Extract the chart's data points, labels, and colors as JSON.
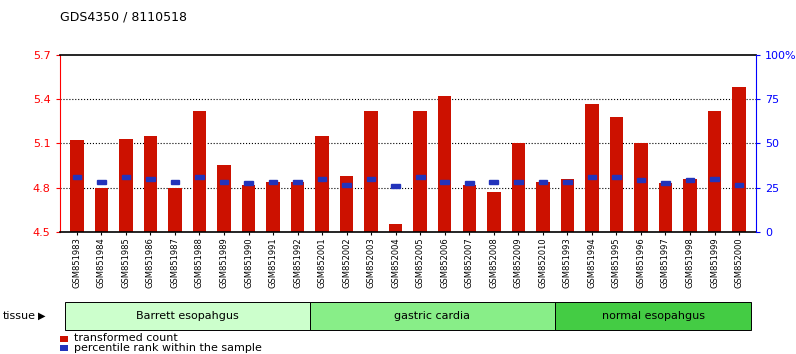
{
  "title": "GDS4350 / 8110518",
  "samples": [
    "GSM851983",
    "GSM851984",
    "GSM851985",
    "GSM851986",
    "GSM851987",
    "GSM851988",
    "GSM851989",
    "GSM851990",
    "GSM851991",
    "GSM851992",
    "GSM852001",
    "GSM852002",
    "GSM852003",
    "GSM852004",
    "GSM852005",
    "GSM852006",
    "GSM852007",
    "GSM852008",
    "GSM852009",
    "GSM852010",
    "GSM851993",
    "GSM851994",
    "GSM851995",
    "GSM851996",
    "GSM851997",
    "GSM851998",
    "GSM851999",
    "GSM852000"
  ],
  "bar_values": [
    5.12,
    4.8,
    5.13,
    5.15,
    4.8,
    5.32,
    4.95,
    4.82,
    4.84,
    4.84,
    5.15,
    4.88,
    5.32,
    4.55,
    5.32,
    5.42,
    4.82,
    4.77,
    5.1,
    4.84,
    4.86,
    5.37,
    5.28,
    5.1,
    4.83,
    4.86,
    5.32,
    5.48
  ],
  "percentile_values": [
    4.87,
    4.84,
    4.87,
    4.86,
    4.84,
    4.87,
    4.84,
    4.83,
    4.84,
    4.84,
    4.86,
    4.82,
    4.86,
    4.81,
    4.87,
    4.84,
    4.83,
    4.84,
    4.84,
    4.84,
    4.84,
    4.87,
    4.87,
    4.85,
    4.83,
    4.85,
    4.86,
    4.82
  ],
  "groups": [
    {
      "label": "Barrett esopahgus",
      "start": 0,
      "end": 9,
      "color": "#ccffcc"
    },
    {
      "label": "gastric cardia",
      "start": 10,
      "end": 19,
      "color": "#88ee88"
    },
    {
      "label": "normal esopahgus",
      "start": 20,
      "end": 27,
      "color": "#44cc44"
    }
  ],
  "ymin": 4.5,
  "ymax": 5.7,
  "yticks": [
    4.5,
    4.8,
    5.1,
    5.4,
    5.7
  ],
  "right_yticks": [
    0,
    25,
    50,
    75,
    100
  ],
  "right_ytick_labels": [
    "0",
    "25",
    "50",
    "75",
    "100%"
  ],
  "bar_color": "#cc1100",
  "percentile_color": "#2233bb",
  "background_color": "#ffffff",
  "plot_bg_color": "#ffffff"
}
